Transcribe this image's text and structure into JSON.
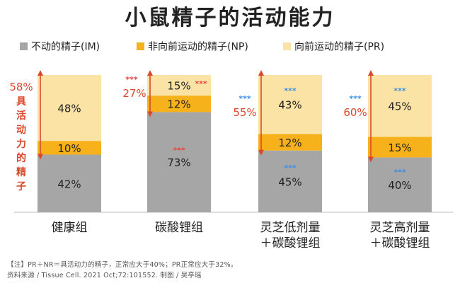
{
  "chart_data": {
    "type": "bar",
    "stacked": true,
    "title": "小鼠精子的活动能力",
    "categories": [
      [
        "健康组"
      ],
      [
        "碳酸锂组"
      ],
      [
        "灵芝低剂量",
        "＋碳酸锂组"
      ],
      [
        "灵芝高剂量",
        "＋碳酸锂组"
      ]
    ],
    "series": [
      {
        "name": "不动的精子(IM)",
        "color": "#a6a6a6",
        "values": [
          42,
          73,
          45,
          40
        ],
        "labels": [
          "42%",
          "73%",
          "45%",
          "40%"
        ]
      },
      {
        "name": "非向前运动的精子(NP)",
        "color": "#f7b21b",
        "values": [
          10,
          12,
          12,
          15
        ],
        "labels": [
          "10%",
          "12%",
          "12%",
          "15%"
        ]
      },
      {
        "name": "向前运动的精子(PR)",
        "color": "#fbe3a6",
        "values": [
          48,
          15,
          43,
          45
        ],
        "labels": [
          "48%",
          "15%",
          "43%",
          "45%"
        ]
      }
    ],
    "ylim": [
      0,
      100
    ],
    "bracket": {
      "label_left": "58%",
      "label_side": [
        "具",
        "活",
        "动",
        "力",
        "的",
        "精",
        "子"
      ],
      "label_mid": [
        "27%",
        "55%",
        "60%"
      ]
    },
    "significance": {
      "symbol": "***",
      "red": "#e8463a",
      "blue": "#3a8ee6"
    }
  },
  "legend": [
    {
      "label": "不动的精子(IM)",
      "color": "#a6a6a6"
    },
    {
      "label": "非向前运动的精子(NP)",
      "color": "#f7b21b"
    },
    {
      "label": "向前运动的精子(PR)",
      "color": "#fbe3a6"
    }
  ],
  "notes": {
    "line1": "【注】PR＋NR＝具活动力的精子，正常应大于40%；PR正常应大于32%。",
    "line2": "资料来源 / Tissue Cell. 2021 Oct;72:101552.     制图 / 吴亭瑶"
  }
}
